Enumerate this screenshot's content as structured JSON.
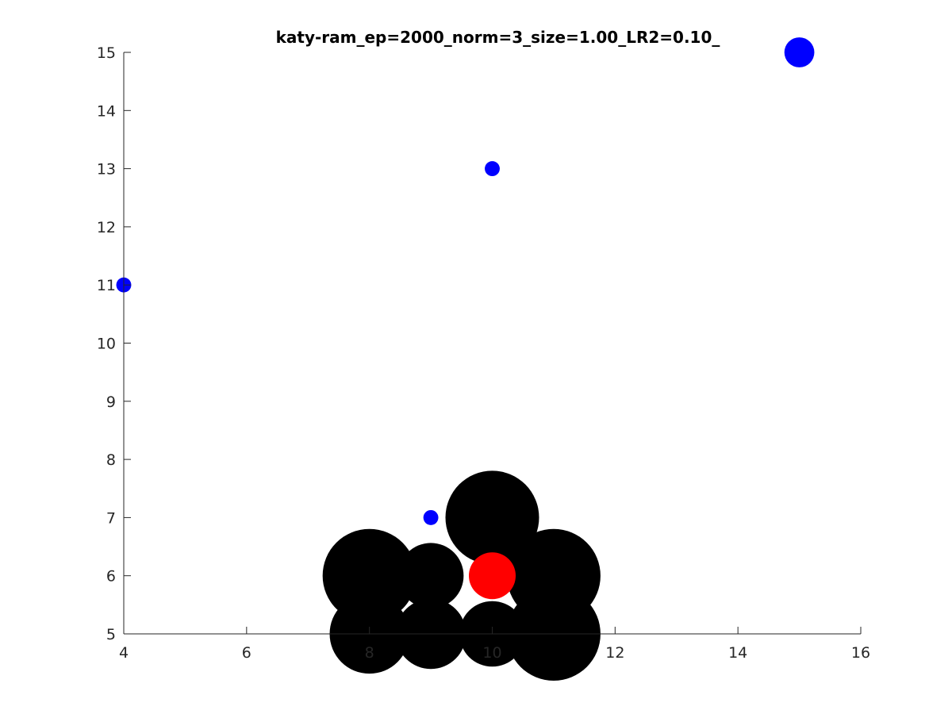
{
  "chart_data": {
    "type": "scatter",
    "title": "katy-ram_ep=2000_norm=3_size=1.00_LR2=0.10_",
    "xlabel": "",
    "ylabel": "",
    "xlim": [
      4,
      16
    ],
    "ylim": [
      5,
      15
    ],
    "xticks": [
      4,
      6,
      8,
      10,
      12,
      14,
      16
    ],
    "yticks": [
      5,
      6,
      7,
      8,
      9,
      10,
      11,
      12,
      13,
      14,
      15
    ],
    "grid": false,
    "series": [
      {
        "color": "#000000",
        "points": [
          {
            "x": 8,
            "y": 6,
            "size": 1.0
          },
          {
            "x": 9,
            "y": 6,
            "size": 0.7
          },
          {
            "x": 10,
            "y": 7,
            "size": 1.0
          },
          {
            "x": 11,
            "y": 6,
            "size": 1.0
          },
          {
            "x": 8,
            "y": 5,
            "size": 0.85
          },
          {
            "x": 9,
            "y": 5,
            "size": 0.75
          },
          {
            "x": 10,
            "y": 5,
            "size": 0.7
          },
          {
            "x": 11,
            "y": 5,
            "size": 1.0
          }
        ]
      },
      {
        "color": "#ff0000",
        "points": [
          {
            "x": 10,
            "y": 6,
            "size": 0.5
          }
        ]
      },
      {
        "color": "#0000ff",
        "points": [
          {
            "x": 4,
            "y": 11,
            "size": 0.16
          },
          {
            "x": 9,
            "y": 7,
            "size": 0.16
          },
          {
            "x": 10,
            "y": 13,
            "size": 0.16
          },
          {
            "x": 15,
            "y": 15,
            "size": 0.32
          }
        ]
      }
    ]
  }
}
